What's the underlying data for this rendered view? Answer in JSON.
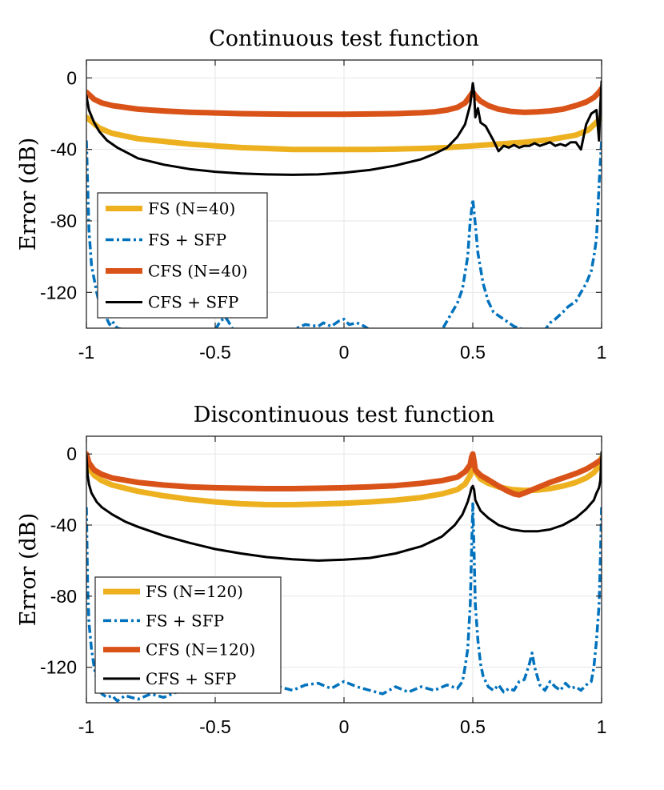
{
  "chart_data": [
    {
      "type": "line",
      "title": "Continuous test function",
      "xlabel": "",
      "ylabel": "Error (dB)",
      "xlim": [
        -1,
        1
      ],
      "ylim": [
        -140,
        10
      ],
      "xticks": [
        -1,
        -0.5,
        0,
        0.5,
        1
      ],
      "xtick_labels": [
        "-1",
        "-0.5",
        "0",
        "0.5",
        "1"
      ],
      "yticks": [
        0,
        -40,
        -80,
        -120
      ],
      "ytick_labels": [
        "0",
        "-40",
        "-80",
        "-120"
      ],
      "grid": true,
      "legend_position": "lower-left",
      "series": [
        {
          "name": "FS (N=40)",
          "color": "#EDB120",
          "style": "solid",
          "x": [
            -1,
            -0.95,
            -0.9,
            -0.8,
            -0.7,
            -0.6,
            -0.5,
            -0.4,
            -0.3,
            -0.2,
            -0.1,
            0,
            0.1,
            0.2,
            0.3,
            0.4,
            0.5,
            0.6,
            0.7,
            0.8,
            0.9,
            0.95,
            1
          ],
          "y": [
            -22,
            -28,
            -31,
            -34,
            -35.5,
            -37,
            -38,
            -39,
            -39.5,
            -40,
            -40,
            -40,
            -40,
            -39.8,
            -39.5,
            -39,
            -38,
            -37,
            -36,
            -34.5,
            -32,
            -29,
            -22
          ]
        },
        {
          "name": "FS + SFP",
          "color": "#0072BD",
          "style": "dash-dot",
          "x": [
            -1,
            -0.99,
            -0.98,
            -0.96,
            -0.94,
            -0.93,
            -0.92,
            -0.91,
            -0.9,
            -0.88,
            -0.85,
            -0.5,
            -0.48,
            -0.46,
            -0.45,
            -0.43,
            -0.2,
            -0.15,
            -0.1,
            -0.08,
            -0.05,
            -0.02,
            0,
            0.02,
            0.05,
            0.08,
            0.1,
            0.38,
            0.4,
            0.42,
            0.44,
            0.46,
            0.48,
            0.49,
            0.5,
            0.51,
            0.52,
            0.54,
            0.56,
            0.58,
            0.6,
            0.62,
            0.64,
            0.66,
            0.68,
            0.7,
            0.72,
            0.78,
            0.8,
            0.82,
            0.85,
            0.87,
            0.9,
            0.92,
            0.94,
            0.96,
            0.97,
            0.98,
            0.99,
            1
          ],
          "y": [
            -35,
            -85,
            -105,
            -120,
            -132,
            -126,
            -135,
            -138,
            -136,
            -140,
            -141,
            -141,
            -136,
            -134,
            -136,
            -141,
            -141,
            -138,
            -139,
            -137,
            -139,
            -136,
            -135,
            -138,
            -137,
            -139,
            -141,
            -141,
            -136,
            -131,
            -126,
            -118,
            -100,
            -80,
            -68,
            -82,
            -98,
            -115,
            -125,
            -131,
            -133,
            -135,
            -137,
            -139,
            -140,
            -141,
            -141,
            -141,
            -137,
            -135,
            -131,
            -128,
            -125,
            -120,
            -115,
            -108,
            -100,
            -90,
            -60,
            -35
          ]
        },
        {
          "name": "CFS (N=40)",
          "color": "#D95319",
          "style": "solid",
          "x": [
            -1,
            -0.97,
            -0.94,
            -0.9,
            -0.8,
            -0.7,
            -0.6,
            -0.5,
            -0.4,
            -0.3,
            -0.2,
            -0.1,
            0,
            0.1,
            0.2,
            0.3,
            0.35,
            0.4,
            0.44,
            0.47,
            0.49,
            0.5,
            0.51,
            0.53,
            0.56,
            0.6,
            0.65,
            0.7,
            0.75,
            0.8,
            0.85,
            0.9,
            0.94,
            0.97,
            0.99,
            1
          ],
          "y": [
            -8,
            -12,
            -14,
            -15.5,
            -17.5,
            -18.5,
            -19.2,
            -19.6,
            -20,
            -20.2,
            -20.3,
            -20.3,
            -20.3,
            -20.2,
            -20,
            -19.5,
            -19,
            -18,
            -16.5,
            -14,
            -10,
            -8,
            -10,
            -13,
            -15.5,
            -17.5,
            -18.8,
            -19.3,
            -19,
            -18.5,
            -17.5,
            -15.5,
            -13.5,
            -11,
            -8,
            -6
          ]
        },
        {
          "name": "CFS + SFP",
          "color": "#000000",
          "style": "solid",
          "x": [
            -1,
            -0.99,
            -0.97,
            -0.95,
            -0.92,
            -0.88,
            -0.84,
            -0.8,
            -0.7,
            -0.6,
            -0.5,
            -0.4,
            -0.3,
            -0.2,
            -0.1,
            0,
            0.1,
            0.2,
            0.3,
            0.35,
            0.4,
            0.44,
            0.47,
            0.49,
            0.5,
            0.505,
            0.51,
            0.52,
            0.53,
            0.55,
            0.58,
            0.6,
            0.62,
            0.64,
            0.66,
            0.68,
            0.7,
            0.72,
            0.74,
            0.76,
            0.78,
            0.8,
            0.82,
            0.84,
            0.86,
            0.88,
            0.9,
            0.92,
            0.94,
            0.96,
            0.98,
            0.99,
            0.995,
            1
          ],
          "y": [
            -10,
            -18,
            -25,
            -30,
            -35,
            -39,
            -42,
            -45,
            -48.5,
            -51,
            -52.5,
            -53.5,
            -54,
            -54.2,
            -54,
            -53,
            -51.5,
            -49,
            -45.5,
            -42.5,
            -39,
            -33,
            -26,
            -15,
            -3,
            -8,
            -22,
            -17,
            -25,
            -27,
            -35,
            -41,
            -38,
            -39,
            -37.5,
            -39,
            -38,
            -38,
            -36.5,
            -38,
            -37,
            -36,
            -38,
            -37,
            -38,
            -36,
            -36,
            -40,
            -26,
            -20,
            -18,
            -35,
            -15,
            -2
          ]
        }
      ]
    },
    {
      "type": "line",
      "title": "Discontinuous test function",
      "xlabel": "",
      "ylabel": "Error (dB)",
      "xlim": [
        -1,
        1
      ],
      "ylim": [
        -140,
        10
      ],
      "xticks": [
        -1,
        -0.5,
        0,
        0.5,
        1
      ],
      "xtick_labels": [
        "-1",
        "-0.5",
        "0",
        "0.5",
        "1"
      ],
      "yticks": [
        0,
        -40,
        -80,
        -120
      ],
      "ytick_labels": [
        "0",
        "-40",
        "-80",
        "-120"
      ],
      "grid": true,
      "legend_position": "lower-left",
      "series": [
        {
          "name": "FS (N=120)",
          "color": "#EDB120",
          "style": "solid",
          "x": [
            -1,
            -0.99,
            -0.97,
            -0.94,
            -0.9,
            -0.8,
            -0.7,
            -0.6,
            -0.5,
            -0.4,
            -0.3,
            -0.2,
            -0.1,
            0,
            0.1,
            0.2,
            0.3,
            0.38,
            0.44,
            0.47,
            0.49,
            0.5,
            0.51,
            0.53,
            0.56,
            0.6,
            0.65,
            0.7,
            0.75,
            0.8,
            0.85,
            0.9,
            0.94,
            0.97,
            0.99,
            1
          ],
          "y": [
            -2,
            -8,
            -12,
            -15,
            -17.5,
            -21,
            -23.5,
            -25.5,
            -27,
            -28,
            -28.5,
            -28.5,
            -28.2,
            -27.7,
            -27,
            -26,
            -24.5,
            -22.5,
            -20,
            -17,
            -12,
            -3,
            -10,
            -14,
            -16.5,
            -18.5,
            -20,
            -20.5,
            -20.3,
            -19.5,
            -18,
            -16,
            -13.5,
            -10.5,
            -7,
            -2
          ]
        },
        {
          "name": "FS + SFP",
          "color": "#0072BD",
          "style": "dash-dot",
          "x": [
            -1,
            -0.995,
            -0.99,
            -0.98,
            -0.97,
            -0.96,
            -0.95,
            -0.94,
            -0.92,
            -0.9,
            -0.88,
            -0.85,
            -0.8,
            -0.75,
            -0.7,
            -0.65,
            -0.6,
            -0.55,
            -0.5,
            -0.45,
            -0.4,
            -0.35,
            -0.3,
            -0.25,
            -0.2,
            -0.15,
            -0.1,
            -0.05,
            0,
            0.05,
            0.1,
            0.15,
            0.2,
            0.25,
            0.3,
            0.35,
            0.4,
            0.44,
            0.46,
            0.47,
            0.48,
            0.49,
            0.495,
            0.5,
            0.505,
            0.51,
            0.52,
            0.53,
            0.54,
            0.56,
            0.58,
            0.6,
            0.62,
            0.64,
            0.66,
            0.68,
            0.7,
            0.72,
            0.73,
            0.74,
            0.76,
            0.78,
            0.8,
            0.82,
            0.84,
            0.86,
            0.88,
            0.9,
            0.92,
            0.94,
            0.96,
            0.97,
            0.98,
            0.99,
            0.995,
            1
          ],
          "y": [
            -30,
            -75,
            -95,
            -110,
            -120,
            -127,
            -132,
            -135,
            -137,
            -136,
            -139,
            -136,
            -138,
            -135,
            -137,
            -134,
            -132,
            -134,
            -131,
            -133,
            -130,
            -132,
            -128,
            -131,
            -133,
            -130,
            -129,
            -132,
            -128,
            -131,
            -133,
            -135,
            -131,
            -134,
            -131,
            -133,
            -130,
            -132,
            -128,
            -120,
            -110,
            -85,
            -55,
            -28,
            -55,
            -85,
            -105,
            -118,
            -125,
            -131,
            -133,
            -130,
            -134,
            -132,
            -133,
            -128,
            -127,
            -118,
            -112,
            -120,
            -130,
            -133,
            -128,
            -131,
            -133,
            -129,
            -132,
            -131,
            -133,
            -130,
            -128,
            -120,
            -105,
            -85,
            -60,
            -30
          ]
        },
        {
          "name": "CFS (N=120)",
          "color": "#D95319",
          "style": "solid",
          "x": [
            -1,
            -0.99,
            -0.97,
            -0.94,
            -0.9,
            -0.8,
            -0.7,
            -0.6,
            -0.5,
            -0.4,
            -0.3,
            -0.2,
            -0.1,
            0,
            0.1,
            0.2,
            0.3,
            0.38,
            0.44,
            0.47,
            0.49,
            0.495,
            0.5,
            0.505,
            0.51,
            0.53,
            0.56,
            0.6,
            0.63,
            0.66,
            0.68,
            0.7,
            0.75,
            0.8,
            0.85,
            0.9,
            0.94,
            0.97,
            0.99,
            1
          ],
          "y": [
            0,
            -5,
            -9,
            -11.5,
            -13.5,
            -16,
            -17.5,
            -18.5,
            -19,
            -19.3,
            -19.5,
            -19.5,
            -19.3,
            -19,
            -18.5,
            -17.8,
            -16.5,
            -15,
            -13,
            -10,
            -6,
            -2,
            0,
            -4,
            -9,
            -12,
            -14.5,
            -18,
            -20.5,
            -22.5,
            -23,
            -22,
            -19,
            -16,
            -13.5,
            -11,
            -8.5,
            -6,
            -4,
            -3
          ]
        },
        {
          "name": "CFS + SFP",
          "color": "#000000",
          "style": "solid",
          "x": [
            -1,
            -0.995,
            -0.99,
            -0.98,
            -0.96,
            -0.94,
            -0.9,
            -0.85,
            -0.8,
            -0.7,
            -0.6,
            -0.5,
            -0.4,
            -0.3,
            -0.2,
            -0.1,
            0,
            0.1,
            0.2,
            0.3,
            0.38,
            0.43,
            0.46,
            0.48,
            0.49,
            0.495,
            0.5,
            0.505,
            0.51,
            0.53,
            0.56,
            0.6,
            0.65,
            0.7,
            0.75,
            0.8,
            0.85,
            0.9,
            0.94,
            0.97,
            0.98,
            0.99,
            0.995,
            1
          ],
          "y": [
            -1,
            -12,
            -17,
            -22,
            -27,
            -30,
            -34,
            -38,
            -41,
            -46,
            -50,
            -53.5,
            -56,
            -58,
            -59.3,
            -60,
            -59.5,
            -58.5,
            -56,
            -52,
            -46.5,
            -40,
            -34,
            -27,
            -22,
            -19,
            -18,
            -20,
            -26,
            -32,
            -36,
            -40,
            -42.5,
            -43.5,
            -43.5,
            -42.5,
            -40,
            -36,
            -31,
            -26,
            -22,
            -19,
            -15,
            1
          ]
        }
      ]
    }
  ]
}
